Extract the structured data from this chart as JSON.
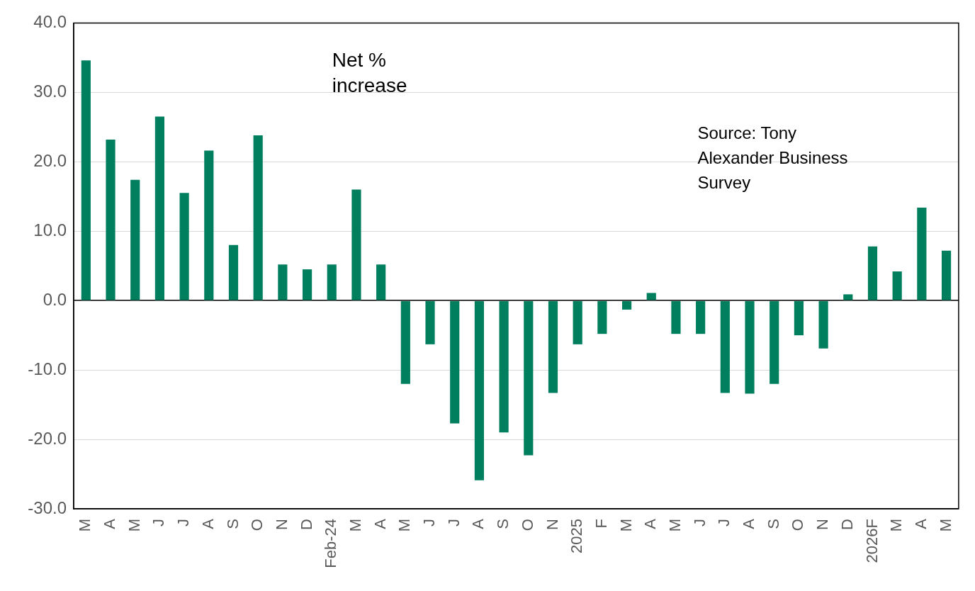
{
  "chart_data": {
    "type": "bar",
    "categories": [
      "M",
      "A",
      "M",
      "J",
      "J",
      "A",
      "S",
      "O",
      "N",
      "D",
      "Feb-24",
      "M",
      "A",
      "M",
      "J",
      "J",
      "A",
      "S",
      "O",
      "N",
      "2025",
      "F",
      "M",
      "A",
      "M",
      "J",
      "J",
      "A",
      "S",
      "O",
      "N",
      "D",
      "2026F",
      "M",
      "A",
      "M"
    ],
    "values": [
      34.6,
      23.2,
      17.4,
      26.5,
      15.5,
      21.6,
      8.0,
      23.8,
      5.2,
      4.5,
      5.2,
      16.0,
      5.2,
      -12.0,
      -6.3,
      -17.7,
      -25.9,
      -19.0,
      -22.3,
      -13.3,
      -6.3,
      -4.8,
      -1.3,
      1.1,
      -4.8,
      -4.8,
      -13.3,
      -13.4,
      -12.0,
      -5.0,
      -6.9,
      0.9,
      7.8,
      4.2,
      13.4,
      7.2
    ],
    "color": "#007f5f",
    "ylim": [
      -30,
      40
    ],
    "yticks": [
      {
        "value": -30,
        "label": "-30.0"
      },
      {
        "value": -20,
        "label": "-20.0"
      },
      {
        "value": -10,
        "label": "-10.0"
      },
      {
        "value": 0,
        "label": "0.0"
      },
      {
        "value": 10,
        "label": "10.0"
      },
      {
        "value": 20,
        "label": "20.0"
      },
      {
        "value": 30,
        "label": "30.0"
      },
      {
        "value": 40,
        "label": "40.0"
      }
    ],
    "grid": "y",
    "annotations": [
      "Net % increase",
      "Source: Tony Alexander Business Survey"
    ]
  }
}
